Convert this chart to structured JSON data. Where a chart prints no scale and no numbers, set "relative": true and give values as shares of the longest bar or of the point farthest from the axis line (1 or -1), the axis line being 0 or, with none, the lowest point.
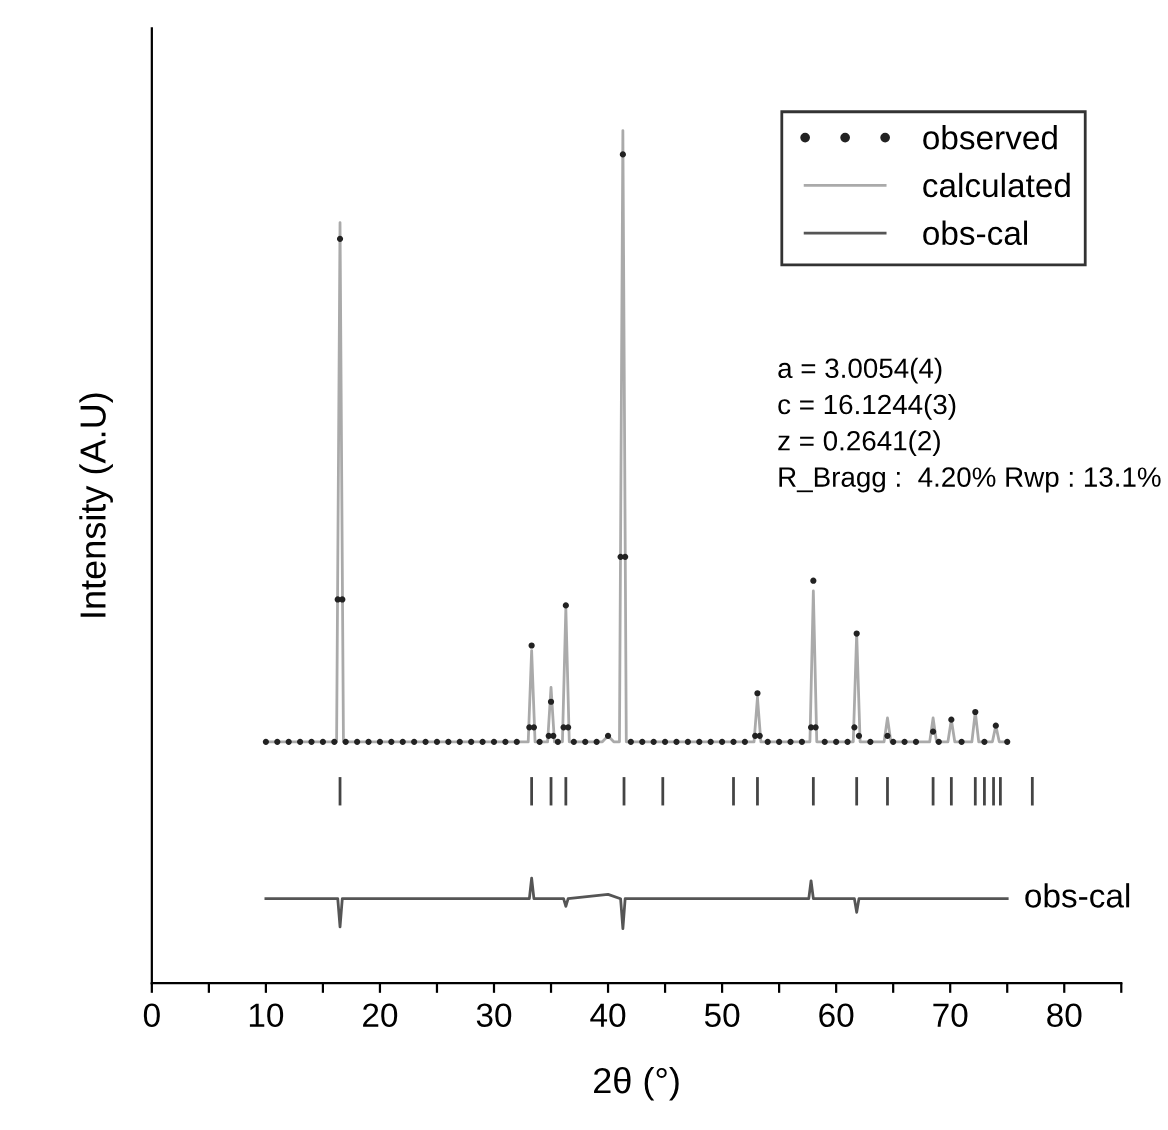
{
  "chart_data": {
    "type": "line",
    "relative": true,
    "xlabel": "2θ (°)",
    "ylabel": "Intensity (A.U)",
    "xlim": [
      0,
      85
    ],
    "xticks": [
      0,
      {
        "value": 5,
        "label": null
      },
      10,
      {
        "value": 15,
        "label": null
      },
      20,
      {
        "value": 25,
        "label": null
      },
      30,
      {
        "value": 35,
        "label": null
      },
      40,
      {
        "value": 45,
        "label": null
      },
      50,
      {
        "value": 55,
        "label": null
      },
      60,
      {
        "value": 65,
        "label": null
      },
      70,
      {
        "value": 75,
        "label": null
      },
      80,
      {
        "value": 85,
        "label": null
      }
    ],
    "tick_labels": "x",
    "grid": false,
    "legend": "top right",
    "series": [
      {
        "name": "observed",
        "type": "scatter",
        "marker": "circle",
        "color": "#222222",
        "x": [
          10,
          11,
          12,
          13,
          14,
          15,
          16,
          16.3,
          16.5,
          16.7,
          17,
          18,
          19,
          20,
          21,
          22,
          23,
          24,
          25,
          26,
          27,
          28,
          29,
          30,
          31,
          32,
          33.1,
          33.3,
          33.5,
          34,
          34.8,
          35.0,
          35.2,
          35.6,
          36.1,
          36.3,
          36.5,
          37,
          38,
          39,
          40,
          41.1,
          41.3,
          41.5,
          42,
          43,
          44,
          45,
          46,
          47,
          48,
          49,
          50,
          51,
          52,
          52.9,
          53.1,
          53.3,
          54,
          55,
          56,
          57,
          57.8,
          58.0,
          58.2,
          59,
          60,
          61,
          61.6,
          61.8,
          62,
          63,
          64.5,
          65,
          66,
          67,
          68.5,
          69,
          70.1,
          71,
          72.2,
          73,
          74,
          75
        ],
        "values": [
          0.283,
          0.283,
          0.283,
          0.283,
          0.283,
          0.283,
          0.283,
          0.45,
          0.873,
          0.45,
          0.283,
          0.283,
          0.283,
          0.283,
          0.283,
          0.283,
          0.283,
          0.283,
          0.283,
          0.283,
          0.283,
          0.283,
          0.283,
          0.283,
          0.283,
          0.283,
          0.3,
          0.396,
          0.3,
          0.283,
          0.29,
          0.33,
          0.29,
          0.283,
          0.3,
          0.443,
          0.3,
          0.283,
          0.283,
          0.283,
          0.29,
          0.5,
          0.972,
          0.5,
          0.283,
          0.283,
          0.283,
          0.283,
          0.283,
          0.283,
          0.283,
          0.283,
          0.283,
          0.283,
          0.283,
          0.29,
          0.34,
          0.29,
          0.283,
          0.283,
          0.283,
          0.283,
          0.3,
          0.472,
          0.3,
          0.283,
          0.283,
          0.283,
          0.3,
          0.41,
          0.29,
          0.283,
          0.29,
          0.283,
          0.283,
          0.283,
          0.295,
          0.283,
          0.309,
          0.283,
          0.318,
          0.283,
          0.302,
          0.283
        ]
      },
      {
        "name": "calculated",
        "color": "#aaaaaa",
        "x": [
          10,
          16.2,
          16.5,
          16.8,
          33.0,
          33.3,
          33.6,
          34.7,
          35.0,
          35.3,
          36.0,
          36.3,
          36.6,
          39.5,
          40,
          40.5,
          41.0,
          41.3,
          41.6,
          52.8,
          53.1,
          53.4,
          57.7,
          58.0,
          58.3,
          61.5,
          61.8,
          62.1,
          64.2,
          64.5,
          64.8,
          68.2,
          68.5,
          68.8,
          69.8,
          70.1,
          70.4,
          71.9,
          72.2,
          72.5,
          73.7,
          74.0,
          74.3,
          75
        ],
        "values": [
          0.283,
          0.283,
          0.892,
          0.283,
          0.283,
          0.39,
          0.283,
          0.283,
          0.347,
          0.283,
          0.283,
          0.44,
          0.283,
          0.283,
          0.29,
          0.283,
          0.283,
          1.0,
          0.283,
          0.283,
          0.335,
          0.283,
          0.283,
          0.46,
          0.283,
          0.283,
          0.41,
          0.283,
          0.283,
          0.311,
          0.283,
          0.283,
          0.311,
          0.283,
          0.283,
          0.309,
          0.283,
          0.283,
          0.318,
          0.283,
          0.283,
          0.302,
          0.283,
          0.283
        ]
      },
      {
        "name": "obs-cal",
        "type": "line",
        "color": "#555555",
        "x": [
          10,
          16.3,
          16.5,
          16.7,
          33.1,
          33.3,
          33.5,
          36.1,
          36.3,
          36.5,
          40,
          41.1,
          41.3,
          41.5,
          57.6,
          57.8,
          58.0,
          61.6,
          61.8,
          62.0,
          75
        ],
        "values": [
          0.099,
          0.099,
          0.066,
          0.099,
          0.099,
          0.123,
          0.099,
          0.099,
          0.09,
          0.099,
          0.104,
          0.099,
          0.064,
          0.099,
          0.099,
          0.12,
          0.099,
          0.099,
          0.083,
          0.099,
          0.099
        ]
      },
      {
        "type": "line",
        "color": "#444444",
        "x": [
          16.5,
          16.5
        ],
        "values": [
          0.21,
          0.24
        ]
      },
      {
        "type": "line",
        "color": "#444444",
        "x": [
          33.3,
          33.3
        ],
        "values": [
          0.21,
          0.24
        ]
      },
      {
        "type": "line",
        "color": "#444444",
        "x": [
          35.0,
          35.0
        ],
        "values": [
          0.21,
          0.24
        ]
      },
      {
        "type": "line",
        "color": "#444444",
        "x": [
          36.3,
          36.3
        ],
        "values": [
          0.21,
          0.24
        ]
      },
      {
        "type": "line",
        "color": "#444444",
        "x": [
          41.4,
          41.4
        ],
        "values": [
          0.21,
          0.24
        ]
      },
      {
        "type": "line",
        "color": "#444444",
        "x": [
          44.8,
          44.8
        ],
        "values": [
          0.21,
          0.24
        ]
      },
      {
        "type": "line",
        "color": "#444444",
        "x": [
          51.0,
          51.0
        ],
        "values": [
          0.21,
          0.24
        ]
      },
      {
        "type": "line",
        "color": "#444444",
        "x": [
          53.1,
          53.1
        ],
        "values": [
          0.21,
          0.24
        ]
      },
      {
        "type": "line",
        "color": "#444444",
        "x": [
          58.0,
          58.0
        ],
        "values": [
          0.21,
          0.24
        ]
      },
      {
        "type": "line",
        "color": "#444444",
        "x": [
          61.8,
          61.8
        ],
        "values": [
          0.21,
          0.24
        ]
      },
      {
        "type": "line",
        "color": "#444444",
        "x": [
          64.5,
          64.5
        ],
        "values": [
          0.21,
          0.24
        ]
      },
      {
        "type": "line",
        "color": "#444444",
        "x": [
          68.5,
          68.5
        ],
        "values": [
          0.21,
          0.24
        ]
      },
      {
        "type": "line",
        "color": "#444444",
        "x": [
          70.1,
          70.1
        ],
        "values": [
          0.21,
          0.24
        ]
      },
      {
        "type": "line",
        "color": "#444444",
        "x": [
          72.2,
          72.2
        ],
        "values": [
          0.21,
          0.24
        ]
      },
      {
        "type": "line",
        "color": "#444444",
        "x": [
          73.0,
          73.0
        ],
        "values": [
          0.21,
          0.24
        ]
      },
      {
        "type": "line",
        "color": "#444444",
        "x": [
          73.8,
          73.8
        ],
        "values": [
          0.21,
          0.24
        ]
      },
      {
        "type": "line",
        "color": "#444444",
        "x": [
          74.4,
          74.4
        ],
        "values": [
          0.21,
          0.24
        ]
      },
      {
        "type": "line",
        "color": "#444444",
        "x": [
          77.2,
          77.2
        ],
        "values": [
          0.21,
          0.24
        ]
      }
    ],
    "annotations": [
      "a = 3.0054(4)",
      "c = 16.1244(3)",
      "z = 0.2641(2)",
      "R_Bragg :  4.20% Rwp : 13.1%",
      {
        "text": "obs-cal",
        "x": 75,
        "y": 0.099
      }
    ]
  }
}
